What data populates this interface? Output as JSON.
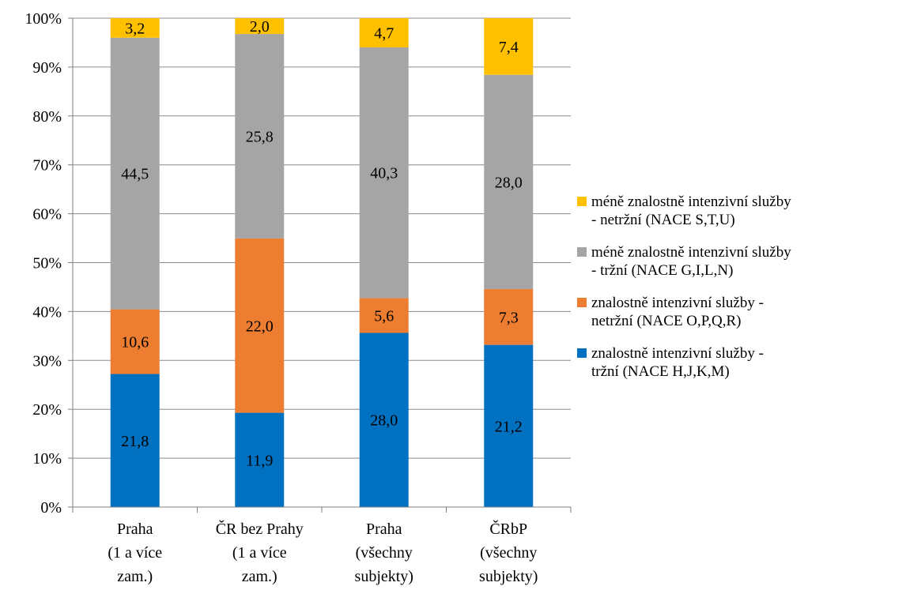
{
  "chart_data": {
    "type": "bar",
    "stacked": true,
    "percent_stacked": true,
    "categories": [
      [
        "Praha",
        "(1 a více",
        "zam.)"
      ],
      [
        "ČR bez Prahy",
        "(1 a více",
        "zam.)"
      ],
      [
        "Praha",
        "(všechny",
        "subjekty)"
      ],
      [
        "ČRbP",
        "(všechny",
        "subjekty)"
      ]
    ],
    "yticks": [
      "0%",
      "10%",
      "20%",
      "30%",
      "40%",
      "50%",
      "60%",
      "70%",
      "80%",
      "90%",
      "100%"
    ],
    "ylim": [
      0,
      100
    ],
    "grid": true,
    "legend_position": "right",
    "series": [
      {
        "name": [
          "znalostně intenzivní služby -",
          "tržní (NACE H,J,K,M)"
        ],
        "color": "#0070C0",
        "values": [
          21.8,
          11.9,
          28.0,
          21.2
        ],
        "labels": [
          "21,8",
          "11,9",
          "28,0",
          "21,2"
        ]
      },
      {
        "name": [
          "znalostně intenzivní služby -",
          "netržní (NACE O,P,Q,R)"
        ],
        "color": "#ED7D31",
        "values": [
          10.6,
          22.0,
          5.6,
          7.3
        ],
        "labels": [
          "10,6",
          "22,0",
          "5,6",
          "7,3"
        ]
      },
      {
        "name": [
          "méně znalostně intenzivní služby",
          "- tržní (NACE G,I,L,N)"
        ],
        "color": "#A5A5A5",
        "values": [
          44.5,
          25.8,
          40.3,
          28.0
        ],
        "labels": [
          "44,5",
          "25,8",
          "40,3",
          "28,0"
        ]
      },
      {
        "name": [
          "méně znalostně intenzivní služby",
          "- netržní (NACE S,T,U)"
        ],
        "color": "#FFC000",
        "values": [
          3.2,
          2.0,
          4.7,
          7.4
        ],
        "labels": [
          "3,2",
          "2,0",
          "4,7",
          "7,4"
        ]
      }
    ]
  }
}
